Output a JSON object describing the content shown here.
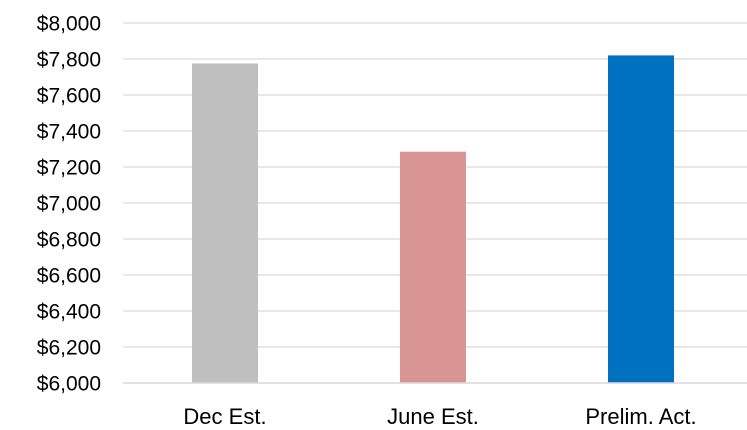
{
  "chart_data": {
    "type": "bar",
    "categories": [
      "Dec Est.",
      "June Est.",
      "Prelim. Act."
    ],
    "values": [
      7775,
      7285,
      7820
    ],
    "colors": [
      "#bfbfbf",
      "#d99594",
      "#0070c0"
    ],
    "ylim": [
      6000,
      8000
    ],
    "y_ticks": [
      6000,
      6200,
      6400,
      6600,
      6800,
      7000,
      7200,
      7400,
      7600,
      7800,
      8000
    ],
    "y_tick_labels": [
      "$6,000",
      "$6,200",
      "$6,400",
      "$6,600",
      "$6,800",
      "$7,000",
      "$7,200",
      "$7,400",
      "$7,600",
      "$7,800",
      "$8,000"
    ],
    "title": "",
    "xlabel": "",
    "ylabel": "",
    "grid": true,
    "legend": "none"
  }
}
